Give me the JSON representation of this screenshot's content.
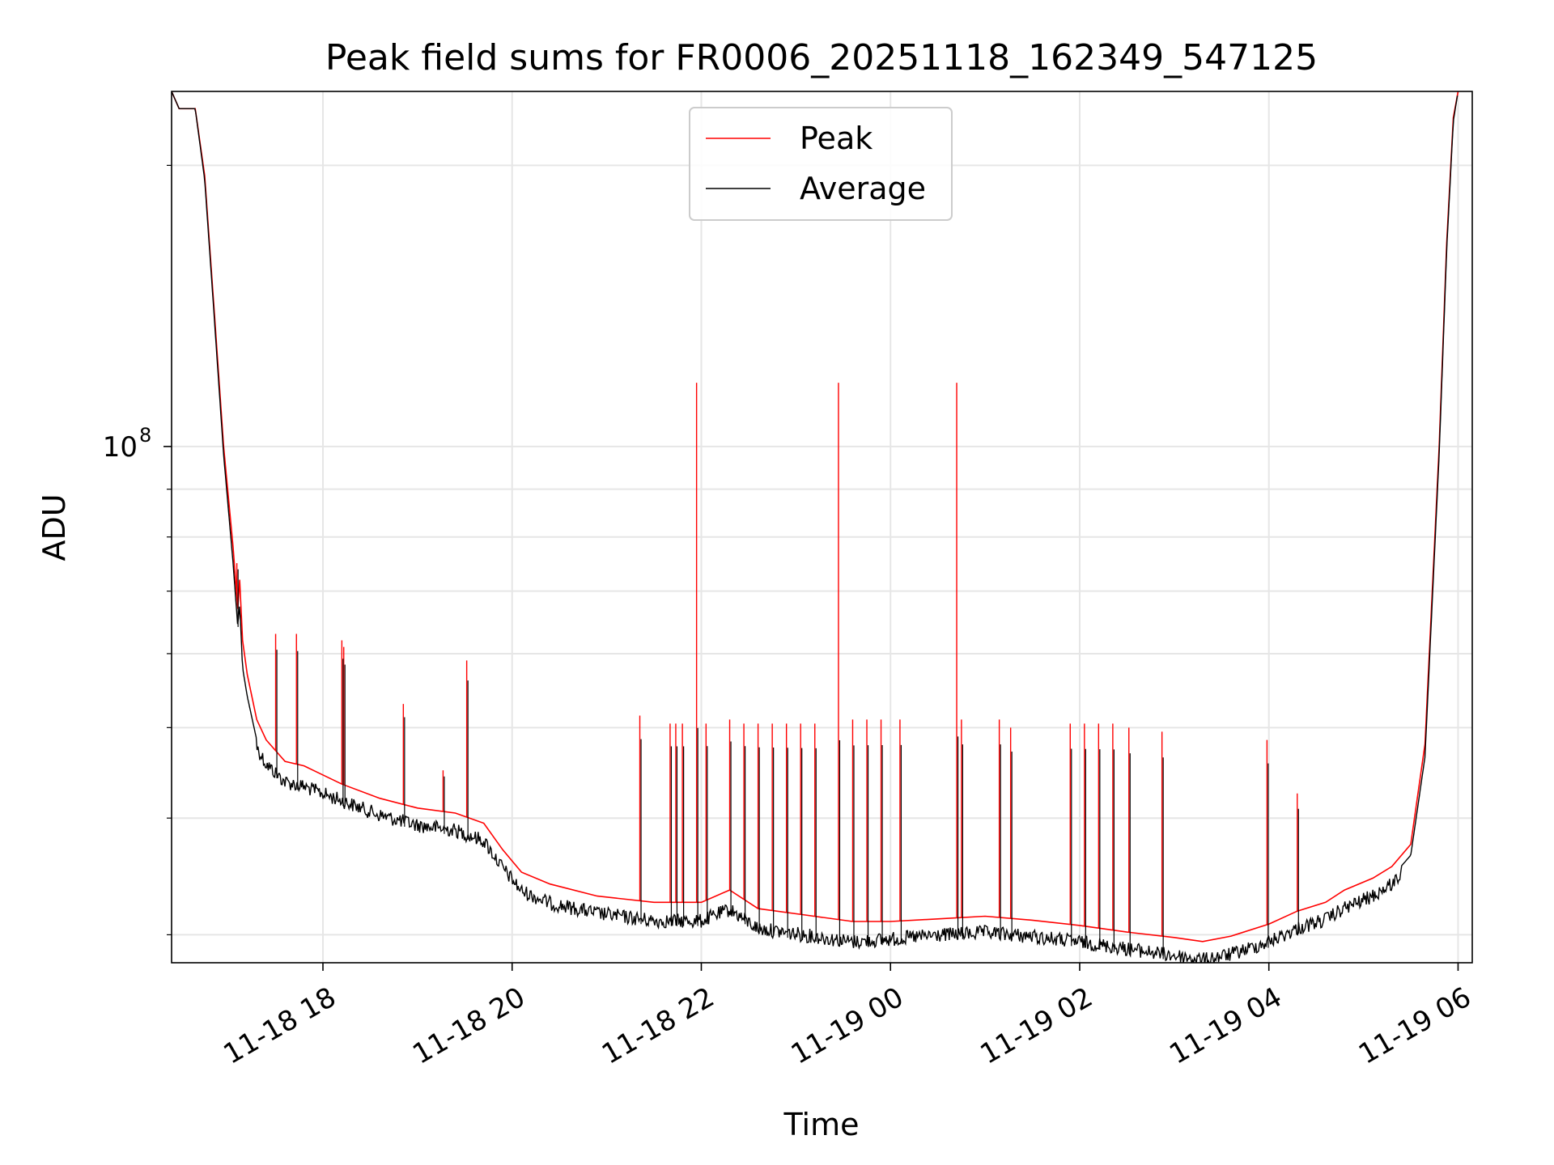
{
  "chart_data": {
    "type": "line",
    "title": "Peak field sums for FR0006_20251118_162349_547125",
    "xlabel": "Time",
    "ylabel": "ADU",
    "yscale": "log",
    "grid": true,
    "legend_location": "upper center",
    "xlim_hours": [
      16.4,
      30.15
    ],
    "ylim": [
      28000000,
      240000000
    ],
    "x_ticks": [
      {
        "hours": 18,
        "label": "11-18 18"
      },
      {
        "hours": 20,
        "label": "11-18 20"
      },
      {
        "hours": 22,
        "label": "11-18 22"
      },
      {
        "hours": 24,
        "label": "11-19 00"
      },
      {
        "hours": 26,
        "label": "11-19 02"
      },
      {
        "hours": 28,
        "label": "11-19 04"
      },
      {
        "hours": 30,
        "label": "11-19 06"
      }
    ],
    "y_ticks": [
      {
        "value": 100000000,
        "base": "10",
        "exponent": "8"
      }
    ],
    "y_minor_ticks": [
      30000000,
      40000000,
      50000000,
      60000000,
      70000000,
      80000000,
      90000000,
      200000000
    ],
    "series": [
      {
        "name": "Peak",
        "color": "#ff0000",
        "points": [
          [
            16.4,
            240000000
          ],
          [
            16.48,
            230000000
          ],
          [
            16.65,
            230000000
          ],
          [
            16.75,
            195000000
          ],
          [
            16.85,
            140000000
          ],
          [
            16.95,
            100000000
          ],
          [
            17.05,
            78000000
          ],
          [
            17.1,
            67000000
          ],
          [
            17.12,
            72000000
          ],
          [
            17.15,
            62000000
          ],
          [
            17.2,
            57000000
          ],
          [
            17.3,
            51000000
          ],
          [
            17.4,
            48500000
          ],
          [
            17.6,
            46000000
          ],
          [
            17.8,
            45500000
          ],
          [
            18.2,
            43500000
          ],
          [
            18.6,
            42000000
          ],
          [
            19.0,
            41000000
          ],
          [
            19.4,
            40500000
          ],
          [
            19.7,
            39500000
          ],
          [
            19.9,
            37000000
          ],
          [
            20.1,
            35000000
          ],
          [
            20.4,
            34000000
          ],
          [
            20.9,
            33000000
          ],
          [
            21.5,
            32500000
          ],
          [
            22.0,
            32500000
          ],
          [
            22.3,
            33500000
          ],
          [
            22.6,
            32000000
          ],
          [
            23.1,
            31500000
          ],
          [
            23.6,
            31000000
          ],
          [
            24.0,
            31000000
          ],
          [
            24.5,
            31200000
          ],
          [
            25.0,
            31400000
          ],
          [
            25.5,
            31100000
          ],
          [
            26.0,
            30700000
          ],
          [
            26.5,
            30200000
          ],
          [
            27.0,
            29800000
          ],
          [
            27.3,
            29500000
          ],
          [
            27.6,
            29900000
          ],
          [
            28.0,
            30800000
          ],
          [
            28.3,
            31800000
          ],
          [
            28.6,
            32500000
          ],
          [
            28.8,
            33500000
          ],
          [
            29.1,
            34500000
          ],
          [
            29.3,
            35500000
          ],
          [
            29.5,
            37500000
          ],
          [
            29.65,
            48000000
          ],
          [
            29.8,
            100000000
          ],
          [
            29.88,
            165000000
          ],
          [
            29.95,
            225000000
          ],
          [
            30.0,
            240000000
          ]
        ],
        "spikes": [
          [
            17.09,
            75000000
          ],
          [
            17.5,
            63000000
          ],
          [
            17.72,
            63000000
          ],
          [
            18.2,
            62000000
          ],
          [
            18.22,
            61000000
          ],
          [
            18.85,
            53000000
          ],
          [
            19.27,
            45000000
          ],
          [
            19.52,
            59000000
          ],
          [
            21.35,
            51500000
          ],
          [
            21.67,
            50500000
          ],
          [
            21.73,
            50500000
          ],
          [
            21.8,
            50500000
          ],
          [
            21.95,
            117000000
          ],
          [
            22.05,
            50500000
          ],
          [
            22.3,
            51000000
          ],
          [
            22.45,
            50500000
          ],
          [
            22.6,
            50500000
          ],
          [
            22.75,
            50500000
          ],
          [
            22.9,
            50500000
          ],
          [
            23.05,
            50500000
          ],
          [
            23.2,
            50500000
          ],
          [
            23.45,
            117000000
          ],
          [
            23.6,
            51000000
          ],
          [
            23.75,
            51000000
          ],
          [
            23.9,
            51000000
          ],
          [
            24.1,
            51000000
          ],
          [
            24.7,
            117000000
          ],
          [
            24.75,
            51000000
          ],
          [
            25.15,
            51000000
          ],
          [
            25.27,
            50000000
          ],
          [
            25.9,
            50500000
          ],
          [
            26.05,
            50500000
          ],
          [
            26.2,
            50500000
          ],
          [
            26.35,
            50500000
          ],
          [
            26.52,
            50000000
          ],
          [
            26.87,
            49500000
          ],
          [
            27.98,
            48500000
          ],
          [
            28.3,
            42500000
          ]
        ]
      },
      {
        "name": "Average",
        "color": "#000000",
        "points": [
          [
            16.4,
            240000000
          ],
          [
            16.48,
            230000000
          ],
          [
            16.65,
            230000000
          ],
          [
            16.75,
            193000000
          ],
          [
            16.85,
            138000000
          ],
          [
            16.95,
            98000000
          ],
          [
            17.05,
            75000000
          ],
          [
            17.1,
            64000000
          ],
          [
            17.12,
            68000000
          ],
          [
            17.15,
            58000000
          ],
          [
            17.2,
            54000000
          ],
          [
            17.3,
            48500000
          ],
          [
            17.4,
            46500000
          ],
          [
            17.6,
            44500000
          ],
          [
            17.8,
            44000000
          ],
          [
            18.2,
            42500000
          ],
          [
            18.6,
            41000000
          ],
          [
            19.0,
            40000000
          ],
          [
            19.4,
            39500000
          ],
          [
            19.7,
            38500000
          ],
          [
            19.9,
            36000000
          ],
          [
            20.1,
            34000000
          ],
          [
            20.4,
            33000000
          ],
          [
            20.9,
            32200000
          ],
          [
            21.5,
            31600000
          ],
          [
            22.0,
            31600000
          ],
          [
            22.3,
            32500000
          ],
          [
            22.6,
            31000000
          ],
          [
            23.1,
            30500000
          ],
          [
            23.6,
            30000000
          ],
          [
            24.0,
            30200000
          ],
          [
            24.5,
            30500000
          ],
          [
            25.0,
            30700000
          ],
          [
            25.5,
            30400000
          ],
          [
            26.0,
            30000000
          ],
          [
            26.5,
            29500000
          ],
          [
            27.0,
            29000000
          ],
          [
            27.3,
            28700000
          ],
          [
            27.6,
            29100000
          ],
          [
            28.0,
            30000000
          ],
          [
            28.3,
            31000000
          ],
          [
            28.6,
            31700000
          ],
          [
            28.8,
            32600000
          ],
          [
            29.1,
            33600000
          ],
          [
            29.3,
            34600000
          ],
          [
            29.5,
            36500000
          ],
          [
            29.65,
            46500000
          ],
          [
            29.8,
            98000000
          ],
          [
            29.88,
            163000000
          ],
          [
            29.95,
            223000000
          ],
          [
            30.0,
            240000000
          ]
        ]
      }
    ]
  }
}
